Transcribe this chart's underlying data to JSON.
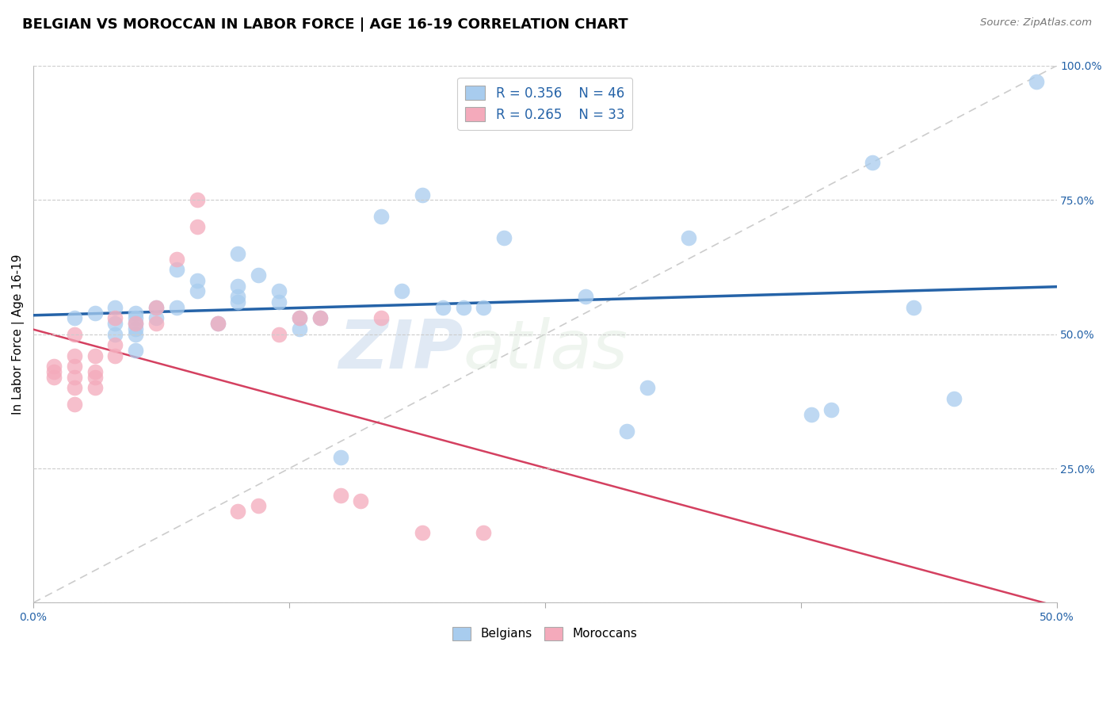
{
  "title": "BELGIAN VS MOROCCAN IN LABOR FORCE | AGE 16-19 CORRELATION CHART",
  "source": "Source: ZipAtlas.com",
  "ylabel_label": "In Labor Force | Age 16-19",
  "xlim": [
    0.0,
    0.5
  ],
  "ylim": [
    0.0,
    1.0
  ],
  "xtick_positions": [
    0.0,
    0.125,
    0.25,
    0.375,
    0.5
  ],
  "xtick_labels": [
    "0.0%",
    "",
    "",
    "",
    "50.0%"
  ],
  "ytick_positions_right": [
    0.0,
    0.25,
    0.5,
    0.75,
    1.0
  ],
  "ytick_labels_right": [
    "",
    "25.0%",
    "50.0%",
    "75.0%",
    "100.0%"
  ],
  "grid_color": "#cccccc",
  "background_color": "#ffffff",
  "belgian_color": "#a8ccee",
  "moroccan_color": "#f4aabb",
  "belgian_line_color": "#2563a8",
  "moroccan_line_color": "#d44060",
  "diagonal_color": "#cccccc",
  "legend_color": "#2563a8",
  "tick_label_color": "#2563a8",
  "R_belgian": 0.356,
  "N_belgian": 46,
  "R_moroccan": 0.265,
  "N_moroccan": 33,
  "belgians_x": [
    0.02,
    0.03,
    0.04,
    0.04,
    0.04,
    0.05,
    0.05,
    0.05,
    0.05,
    0.05,
    0.05,
    0.06,
    0.06,
    0.07,
    0.07,
    0.08,
    0.08,
    0.09,
    0.1,
    0.1,
    0.1,
    0.1,
    0.11,
    0.12,
    0.12,
    0.13,
    0.13,
    0.14,
    0.15,
    0.17,
    0.18,
    0.19,
    0.2,
    0.21,
    0.22,
    0.23,
    0.27,
    0.29,
    0.3,
    0.32,
    0.38,
    0.39,
    0.41,
    0.43,
    0.45,
    0.49
  ],
  "belgians_y": [
    0.53,
    0.54,
    0.5,
    0.52,
    0.55,
    0.47,
    0.5,
    0.51,
    0.52,
    0.53,
    0.54,
    0.53,
    0.55,
    0.55,
    0.62,
    0.58,
    0.6,
    0.52,
    0.56,
    0.57,
    0.59,
    0.65,
    0.61,
    0.56,
    0.58,
    0.51,
    0.53,
    0.53,
    0.27,
    0.72,
    0.58,
    0.76,
    0.55,
    0.55,
    0.55,
    0.68,
    0.57,
    0.32,
    0.4,
    0.68,
    0.35,
    0.36,
    0.82,
    0.55,
    0.38,
    0.97
  ],
  "moroccans_x": [
    0.01,
    0.01,
    0.01,
    0.02,
    0.02,
    0.02,
    0.02,
    0.02,
    0.02,
    0.03,
    0.03,
    0.03,
    0.03,
    0.04,
    0.04,
    0.04,
    0.05,
    0.06,
    0.06,
    0.07,
    0.08,
    0.08,
    0.09,
    0.1,
    0.11,
    0.12,
    0.13,
    0.14,
    0.15,
    0.16,
    0.17,
    0.19,
    0.22
  ],
  "moroccans_y": [
    0.42,
    0.43,
    0.44,
    0.37,
    0.4,
    0.42,
    0.44,
    0.46,
    0.5,
    0.4,
    0.42,
    0.43,
    0.46,
    0.46,
    0.48,
    0.53,
    0.52,
    0.52,
    0.55,
    0.64,
    0.7,
    0.75,
    0.52,
    0.17,
    0.18,
    0.5,
    0.53,
    0.53,
    0.2,
    0.19,
    0.53,
    0.13,
    0.13
  ],
  "watermark_zip": "ZIP",
  "watermark_atlas": "atlas",
  "title_fontsize": 13,
  "axis_label_fontsize": 11,
  "tick_fontsize": 10,
  "legend_fontsize": 12,
  "source_fontsize": 9.5
}
